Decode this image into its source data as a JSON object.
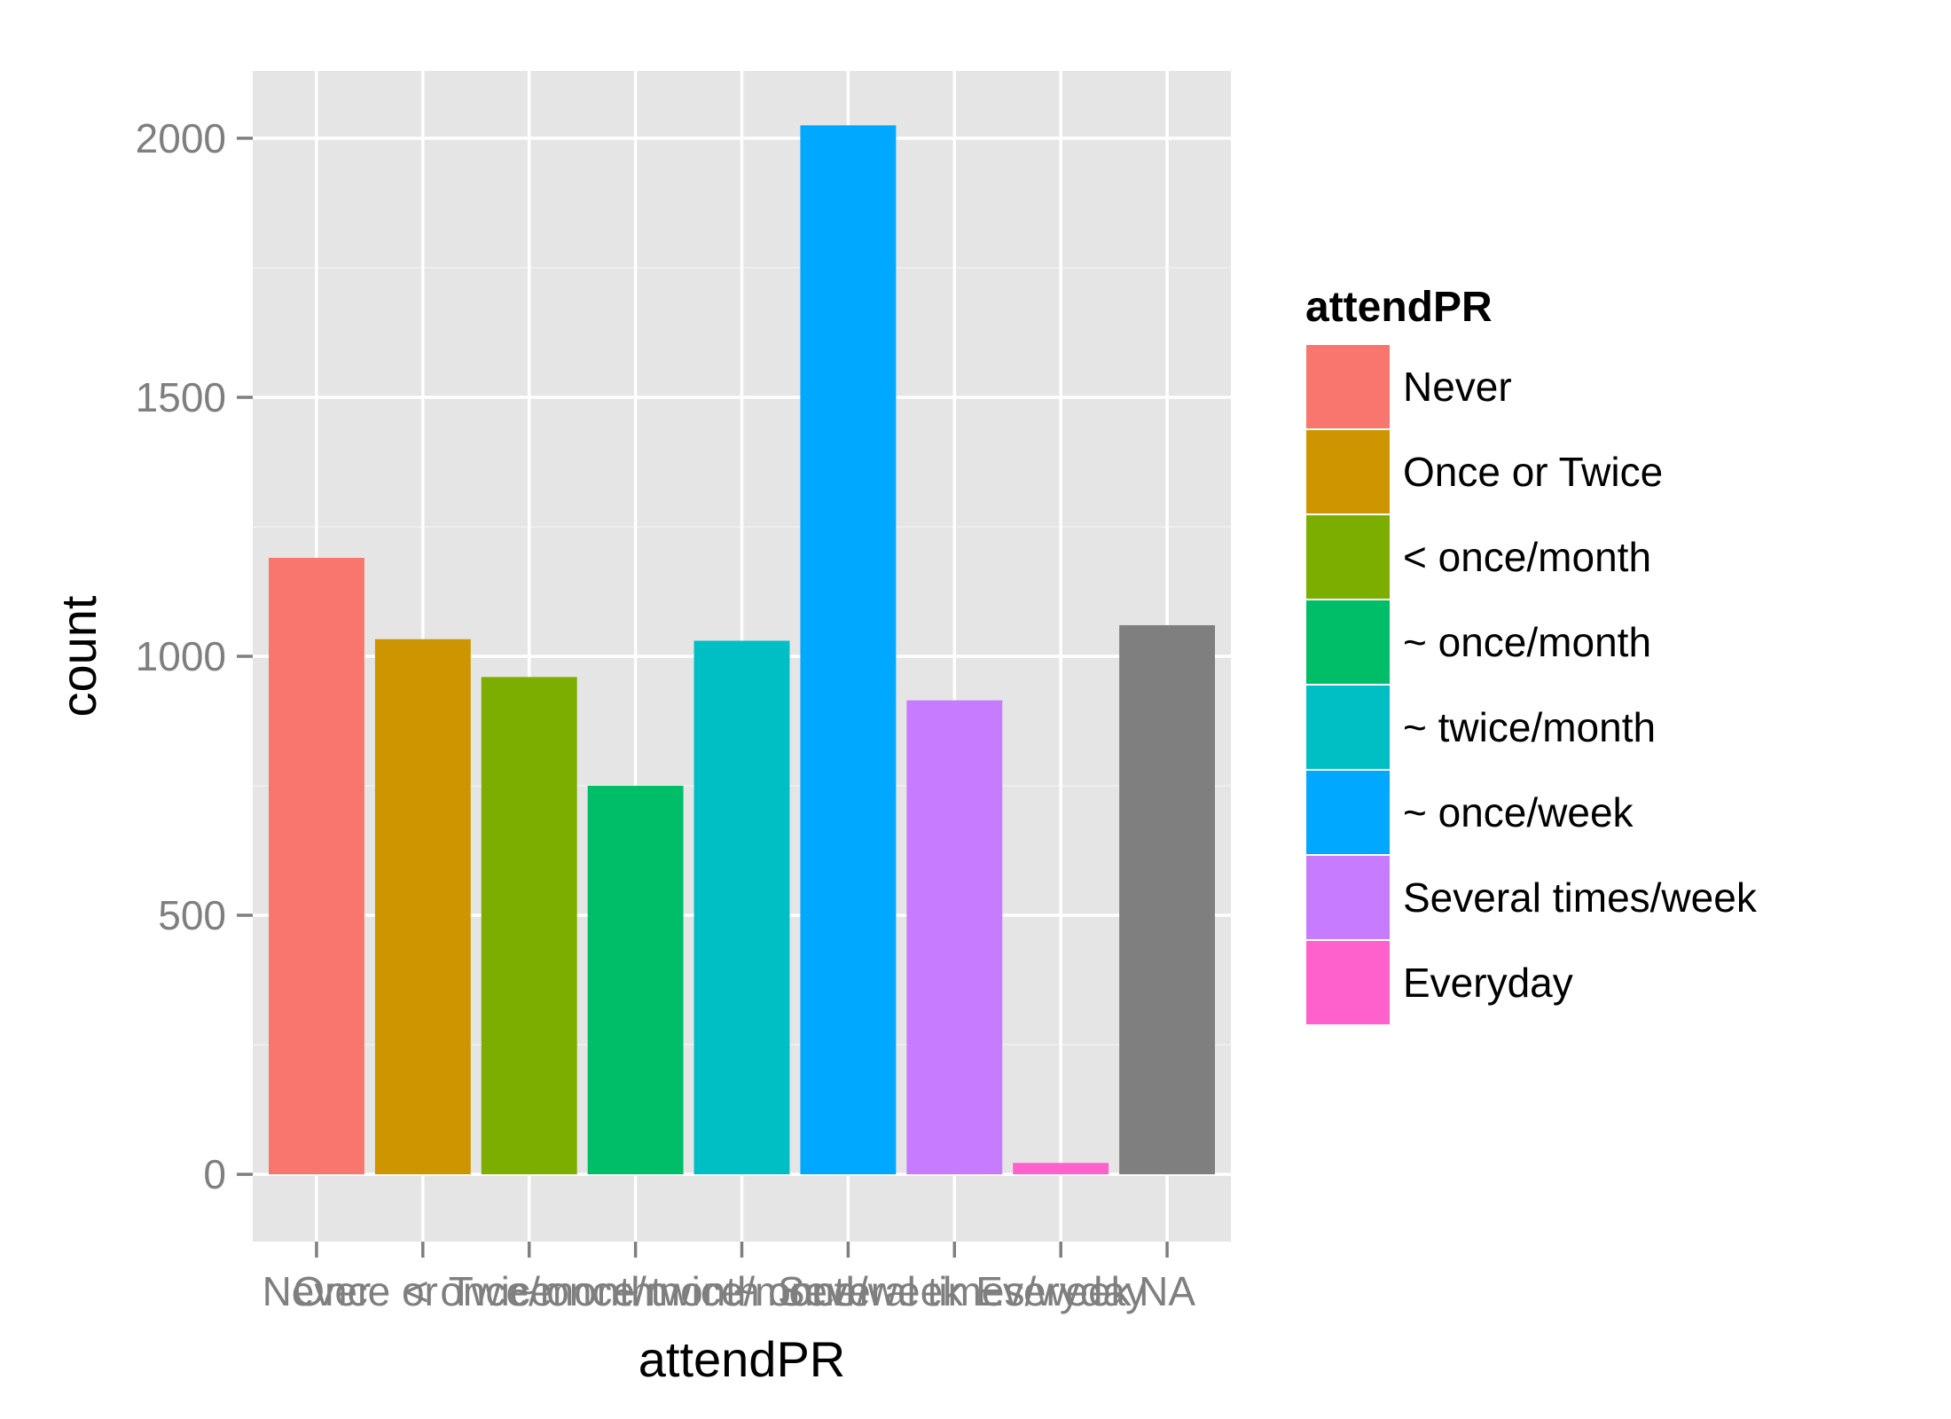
{
  "chart_data": {
    "type": "bar",
    "categories": [
      "Never",
      "Once or Twice",
      "< once/month",
      "~ once/month",
      "~ twice/month",
      "~ once/week",
      "Several times/week",
      "Everyday",
      "NA"
    ],
    "values": [
      1190,
      1033,
      960,
      750,
      1030,
      2025,
      915,
      22,
      1060
    ],
    "colors": [
      "#F8766D",
      "#CD9600",
      "#7CAE00",
      "#00BE67",
      "#00BFC4",
      "#00A9FF",
      "#C77CFF",
      "#FF61CC",
      "#7F7F7F"
    ],
    "xlabel": "attendPR",
    "ylabel": "count",
    "yticks": [
      0,
      500,
      1000,
      1500,
      2000
    ],
    "ylim": [
      -130,
      2130
    ],
    "grid": true,
    "panel_background": "#E5E5E5",
    "legend": {
      "title": "attendPR",
      "placement": "right",
      "entries": [
        "Never",
        "Once or Twice",
        "< once/month",
        "~ once/month",
        "~ twice/month",
        "~ once/week",
        "Several times/week",
        "Everyday"
      ]
    }
  }
}
